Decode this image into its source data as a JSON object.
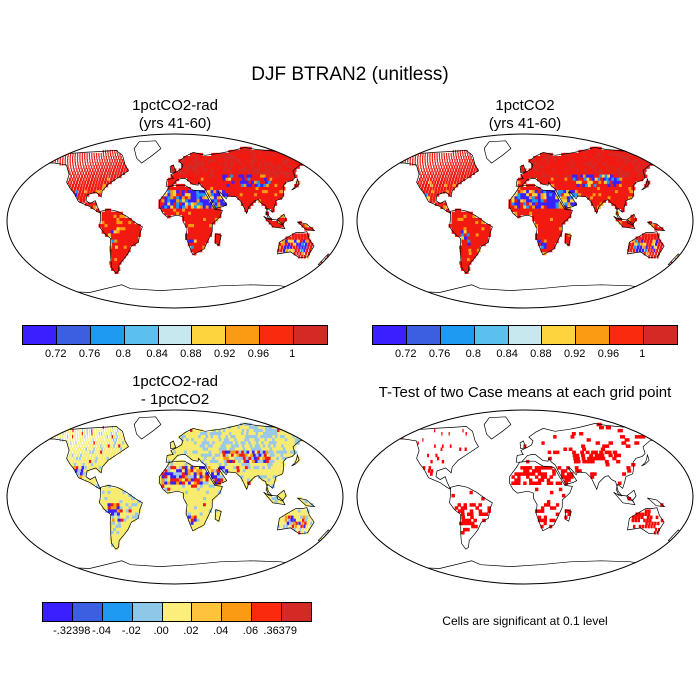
{
  "figure": {
    "title": "DJF BTRAN2 (unitless)"
  },
  "panels": {
    "top_left": {
      "title_line1": "1pctCO2-rad",
      "title_line2": "(yrs 41-60)"
    },
    "top_right": {
      "title_line1": "1pctCO2",
      "title_line2": "(yrs 41-60)"
    },
    "bottom_left": {
      "title_line1": "1pctCO2-rad",
      "title_line2": "- 1pctCO2"
    },
    "bottom_right": {
      "title": "T-Test of two Case means at each grid point",
      "note": "Cells are significant at 0.1 level"
    }
  },
  "colorbar_abs": {
    "colors": [
      "#3a1fff",
      "#3b5fe0",
      "#1f9af2",
      "#5cc0ee",
      "#c8e8f0",
      "#fdd33e",
      "#fb9b14",
      "#fa2a0f",
      "#d42a26"
    ],
    "labels": [
      "0.72",
      "0.76",
      "0.8",
      "0.84",
      "0.88",
      "0.92",
      "0.96",
      "1"
    ]
  },
  "colorbar_diff": {
    "colors": [
      "#3a1fff",
      "#3b5fe0",
      "#1f9af2",
      "#8ec8e8",
      "#fbee7a",
      "#fdc33c",
      "#fb9b14",
      "#fa2a0f",
      "#d42a26"
    ],
    "labels": [
      "-.32398",
      "-.04",
      "-.02",
      ".00",
      ".02",
      ".04",
      ".06",
      ".36379"
    ]
  },
  "map_colors": {
    "high": "#f21a10",
    "dark_high": "#d42a26",
    "orange": "#fb9b14",
    "yellow": "#fdd33e",
    "blue": "#3a1fff",
    "cyan": "#1f9af2",
    "pale_yellow": "#f7ec70",
    "light_blue": "#9cc8e8",
    "sig_red": "#ff0000",
    "ocean": "#ffffff",
    "coast": "#000000"
  }
}
